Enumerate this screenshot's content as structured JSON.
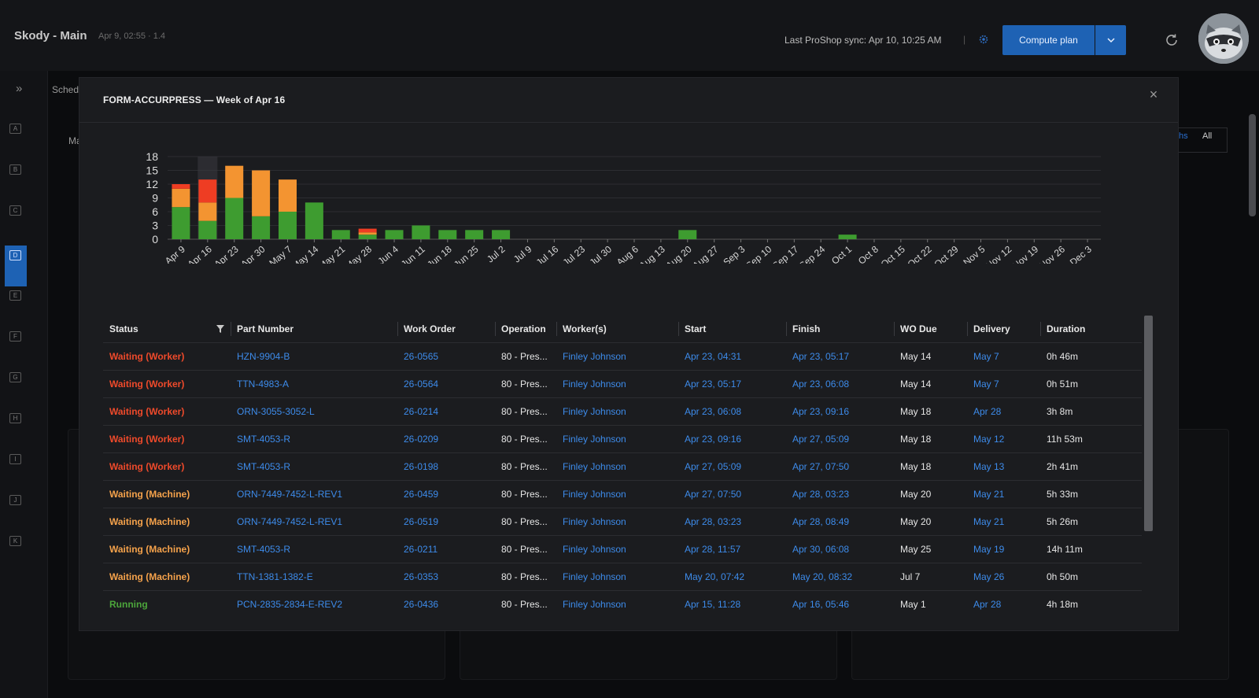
{
  "header": {
    "app_title": "Skody - Main",
    "app_subtitle": "Apr 9, 02:55 · 1.4",
    "sync_text": "Last ProShop sync: Apr 10, 10:25 AM",
    "sync_separator": "|",
    "compute_label": "Compute plan"
  },
  "rail": {
    "expand_glyph": "»",
    "items": [
      "A",
      "B",
      "C",
      "D",
      "E",
      "F",
      "G",
      "H",
      "I",
      "J",
      "K"
    ]
  },
  "background": {
    "sched_label": "Sched",
    "ma_label": "Ma",
    "range_tab_all": "All",
    "range_tab_months": "ths"
  },
  "modal": {
    "title": "FORM-ACCURPRESS — Week of Apr 16",
    "close_glyph": "×"
  },
  "colors": {
    "running": "#3e9c30",
    "waiting_machine": "#f39431",
    "waiting_worker": "#ee3d23",
    "link": "#3d8bea",
    "accent": "#1e62b4"
  },
  "chart_data": {
    "type": "bar",
    "stacked": true,
    "highlighted_category": "Apr 16",
    "categories": [
      "Apr 9",
      "Apr 16",
      "Apr 23",
      "Apr 30",
      "May 7",
      "May 14",
      "May 21",
      "May 28",
      "Jun 4",
      "Jun 11",
      "Jun 18",
      "Jun 25",
      "Jul 2",
      "Jul 9",
      "Jul 16",
      "Jul 23",
      "Jul 30",
      "Aug 6",
      "Aug 13",
      "Aug 20",
      "Aug 27",
      "Sep 3",
      "Sep 10",
      "Sep 17",
      "Sep 24",
      "Oct 1",
      "Oct 8",
      "Oct 15",
      "Oct 22",
      "Oct 29",
      "Nov 5",
      "Nov 12",
      "Nov 19",
      "Nov 26",
      "Dec 3"
    ],
    "series": [
      {
        "color": "#3e9c30",
        "values": [
          7,
          4,
          9,
          5,
          6,
          8,
          2,
          1,
          2,
          3,
          2,
          2,
          2,
          0,
          0,
          0,
          0,
          0,
          0,
          2,
          0,
          0,
          0,
          0,
          0,
          1,
          0,
          0,
          0,
          0,
          0,
          0,
          0,
          0,
          0
        ]
      },
      {
        "color": "#f39431",
        "values": [
          4,
          4,
          7,
          10,
          7,
          0,
          0,
          0.5,
          0,
          0,
          0,
          0,
          0,
          0,
          0,
          0,
          0,
          0,
          0,
          0,
          0,
          0,
          0,
          0,
          0,
          0,
          0,
          0,
          0,
          0,
          0,
          0,
          0,
          0,
          0
        ]
      },
      {
        "color": "#ee3d23",
        "values": [
          1,
          5,
          0,
          0,
          0,
          0,
          0,
          0.8,
          0,
          0,
          0,
          0,
          0,
          0,
          0,
          0,
          0,
          0,
          0,
          0,
          0,
          0,
          0,
          0,
          0,
          0,
          0,
          0,
          0,
          0,
          0,
          0,
          0,
          0,
          0
        ]
      }
    ],
    "y_ticks": [
      0,
      3,
      6,
      9,
      12,
      15,
      18
    ],
    "ylim": [
      0,
      18
    ],
    "grid": true,
    "legend": "none"
  },
  "table": {
    "headers": [
      "Status",
      "Part Number",
      "Work Order",
      "Operation",
      "Worker(s)",
      "Start",
      "Finish",
      "WO Due",
      "Delivery",
      "Duration"
    ],
    "rows": [
      {
        "status": "Waiting (Worker)",
        "kind": "worker",
        "part": "HZN-9904-B",
        "wo": "26-0565",
        "op": "80 - Pres...",
        "worker": "Finley Johnson",
        "start": "Apr 23, 04:31",
        "finish": "Apr 23, 05:17",
        "due": "May 14",
        "delivery": "May 7",
        "duration": "0h 46m"
      },
      {
        "status": "Waiting (Worker)",
        "kind": "worker",
        "part": "TTN-4983-A",
        "wo": "26-0564",
        "op": "80 - Pres...",
        "worker": "Finley Johnson",
        "start": "Apr 23, 05:17",
        "finish": "Apr 23, 06:08",
        "due": "May 14",
        "delivery": "May 7",
        "duration": "0h 51m"
      },
      {
        "status": "Waiting (Worker)",
        "kind": "worker",
        "part": "ORN-3055-3052-L",
        "wo": "26-0214",
        "op": "80 - Pres...",
        "worker": "Finley Johnson",
        "start": "Apr 23, 06:08",
        "finish": "Apr 23, 09:16",
        "due": "May 18",
        "delivery": "Apr 28",
        "duration": "3h 8m"
      },
      {
        "status": "Waiting (Worker)",
        "kind": "worker",
        "part": "SMT-4053-R",
        "wo": "26-0209",
        "op": "80 - Pres...",
        "worker": "Finley Johnson",
        "start": "Apr 23, 09:16",
        "finish": "Apr 27, 05:09",
        "due": "May 18",
        "delivery": "May 12",
        "duration": "11h 53m"
      },
      {
        "status": "Waiting (Worker)",
        "kind": "worker",
        "part": "SMT-4053-R",
        "wo": "26-0198",
        "op": "80 - Pres...",
        "worker": "Finley Johnson",
        "start": "Apr 27, 05:09",
        "finish": "Apr 27, 07:50",
        "due": "May 18",
        "delivery": "May 13",
        "duration": "2h 41m"
      },
      {
        "status": "Waiting (Machine)",
        "kind": "machine",
        "part": "ORN-7449-7452-L-REV1",
        "wo": "26-0459",
        "op": "80 - Pres...",
        "worker": "Finley Johnson",
        "start": "Apr 27, 07:50",
        "finish": "Apr 28, 03:23",
        "due": "May 20",
        "delivery": "May 21",
        "duration": "5h 33m"
      },
      {
        "status": "Waiting (Machine)",
        "kind": "machine",
        "part": "ORN-7449-7452-L-REV1",
        "wo": "26-0519",
        "op": "80 - Pres...",
        "worker": "Finley Johnson",
        "start": "Apr 28, 03:23",
        "finish": "Apr 28, 08:49",
        "due": "May 20",
        "delivery": "May 21",
        "duration": "5h 26m"
      },
      {
        "status": "Waiting (Machine)",
        "kind": "machine",
        "part": "SMT-4053-R",
        "wo": "26-0211",
        "op": "80 - Pres...",
        "worker": "Finley Johnson",
        "start": "Apr 28, 11:57",
        "finish": "Apr 30, 06:08",
        "due": "May 25",
        "delivery": "May 19",
        "duration": "14h 11m"
      },
      {
        "status": "Waiting (Machine)",
        "kind": "machine",
        "part": "TTN-1381-1382-E",
        "wo": "26-0353",
        "op": "80 - Pres...",
        "worker": "Finley Johnson",
        "start": "May 20, 07:42",
        "finish": "May 20, 08:32",
        "due": "Jul 7",
        "delivery": "May 26",
        "duration": "0h 50m"
      },
      {
        "status": "Running",
        "kind": "running",
        "part": "PCN-2835-2834-E-REV2",
        "wo": "26-0436",
        "op": "80 - Pres...",
        "worker": "Finley Johnson",
        "start": "Apr 15, 11:28",
        "finish": "Apr 16, 05:46",
        "due": "May 1",
        "delivery": "Apr 28",
        "duration": "4h 18m"
      }
    ]
  }
}
